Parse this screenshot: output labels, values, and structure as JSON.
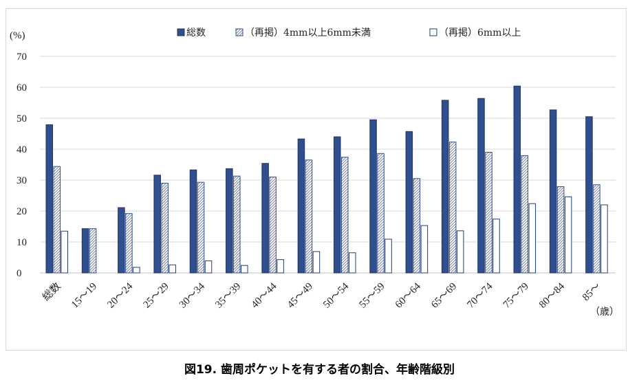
{
  "chart_data": {
    "type": "bar",
    "title": "図19. 歯周ポケットを有する者の割合、年齢階級別",
    "ylabel": "(%)",
    "xlabel": "（歳）",
    "ylim": [
      0,
      70
    ],
    "yticks": [
      "0",
      "10",
      "20",
      "30",
      "40",
      "50",
      "60",
      "70"
    ],
    "categories": [
      "総数",
      "15～19",
      "20～24",
      "25～29",
      "30～34",
      "35～39",
      "40～44",
      "45～49",
      "50～54",
      "55～59",
      "60～64",
      "65～69",
      "70～74",
      "75～79",
      "80～84",
      "85～"
    ],
    "series": [
      {
        "name": "総数",
        "color": "#2f4f8f",
        "values": [
          47.9,
          14.3,
          21.1,
          31.6,
          33.3,
          33.7,
          35.4,
          43.3,
          44.0,
          49.5,
          45.7,
          55.8,
          56.4,
          60.4,
          52.7,
          50.5
        ]
      },
      {
        "name": "（再掲）4mm以上6mm未満",
        "color": "#8090b8",
        "values": [
          34.4,
          14.3,
          19.2,
          29.0,
          29.3,
          31.3,
          31.0,
          36.5,
          37.4,
          38.6,
          30.5,
          42.3,
          39.0,
          37.9,
          27.9,
          28.5
        ]
      },
      {
        "name": "（再掲）6mm以上",
        "color": "#1f3b6f",
        "values": [
          13.5,
          0,
          1.8,
          2.6,
          3.9,
          2.4,
          4.3,
          6.9,
          6.5,
          10.9,
          15.3,
          13.6,
          17.4,
          22.4,
          24.6,
          22.0
        ]
      }
    ]
  }
}
